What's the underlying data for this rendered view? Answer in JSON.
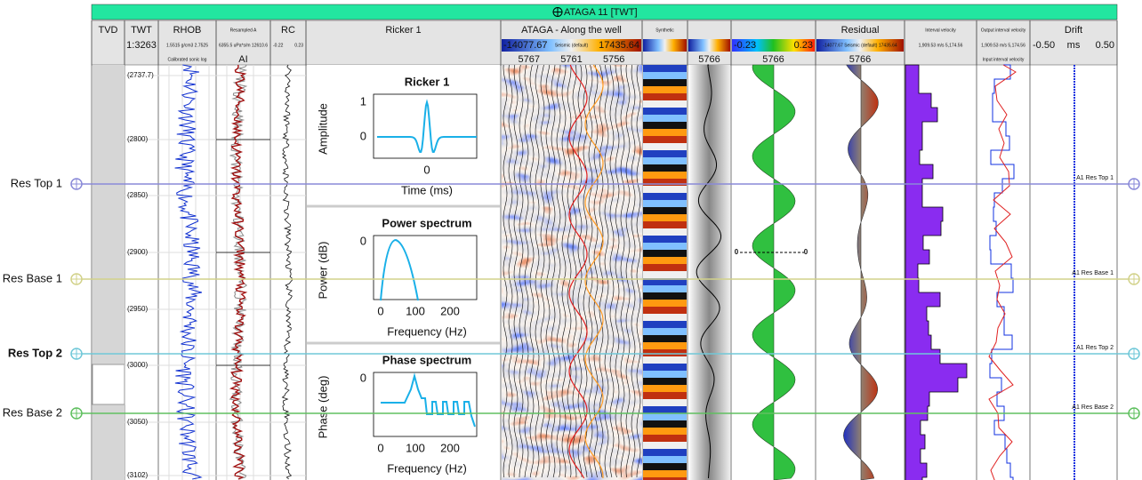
{
  "header": {
    "title": "ATAGA 11 [TWT]"
  },
  "columns": [
    {
      "name": "TVD"
    },
    {
      "name": "TWT",
      "scale": [
        "1:3263"
      ]
    },
    {
      "name": "RHOB",
      "scale": [
        "1.5515 g/cm3 2.7525"
      ],
      "sub": [
        "Calibrated sonic log"
      ]
    },
    {
      "name": "Resampled A",
      "scale": [
        "6355.5 uPa*s/m 12610.6"
      ],
      "sub": [
        "AI"
      ]
    },
    {
      "name": "RC",
      "scale": [
        "-0.22",
        "0.23"
      ]
    },
    {
      "name": "Ricker 1"
    },
    {
      "name": "ATAGA - Along the well",
      "scale": [
        "-14077.67",
        "Seismic (default)",
        "17435.64"
      ],
      "sub": [
        "5767",
        "5761",
        "5756"
      ]
    },
    {
      "name": "Synthetic"
    },
    {
      "sub": [
        "5766"
      ]
    },
    {
      "scale": [
        "-0.23",
        "0.23"
      ],
      "sub": [
        "5766"
      ]
    },
    {
      "name": "Residual",
      "scale": [
        "-14077.67 Seismic (default) 17435.64"
      ],
      "sub": [
        "5766"
      ]
    },
    {
      "name": "Interval velocity",
      "scale": [
        "1,909.53 m/s 5,174.56"
      ]
    },
    {
      "name": "Output interval velocity",
      "scale": [
        "1,909.53 m/s 5,174.56"
      ],
      "sub": [
        "Input interval velocity"
      ]
    },
    {
      "name": "Drift",
      "scale": [
        "-0.50",
        "ms",
        "0.50"
      ]
    }
  ],
  "depths": [
    "(2737.7)",
    "(2800)",
    "(2850)",
    "(2900)",
    "(2950)",
    "(3000)",
    "(3050)",
    "(3102)"
  ],
  "markers": [
    {
      "label": "Res Top 1",
      "tag": "A1 Res Top 1"
    },
    {
      "label": "Res Base 1",
      "tag": "A1 Res Base 1"
    },
    {
      "label": "Res Top 2",
      "tag": "A1 Res Top 2"
    },
    {
      "label": "Res Base 2",
      "tag": "A1 Res Base 2"
    }
  ],
  "panels": [
    {
      "title": "Ricker 1",
      "ylabel": "Amplitude",
      "xlabel": "Time (ms)",
      "yticks": [
        "1",
        "0"
      ],
      "xticks": [
        "0"
      ]
    },
    {
      "title": "Power spectrum",
      "ylabel": "Power (dB)",
      "xlabel": "Frequency (Hz)",
      "yticks": [
        "0"
      ],
      "xticks": [
        "0",
        "100",
        "200"
      ]
    },
    {
      "title": "Phase spectrum",
      "ylabel": "Phase (deg)",
      "xlabel": "Frequency (Hz)",
      "yticks": [
        "0"
      ],
      "xticks": [
        "0",
        "100",
        "200"
      ]
    }
  ],
  "annotations": [
    "0",
    "0"
  ]
}
